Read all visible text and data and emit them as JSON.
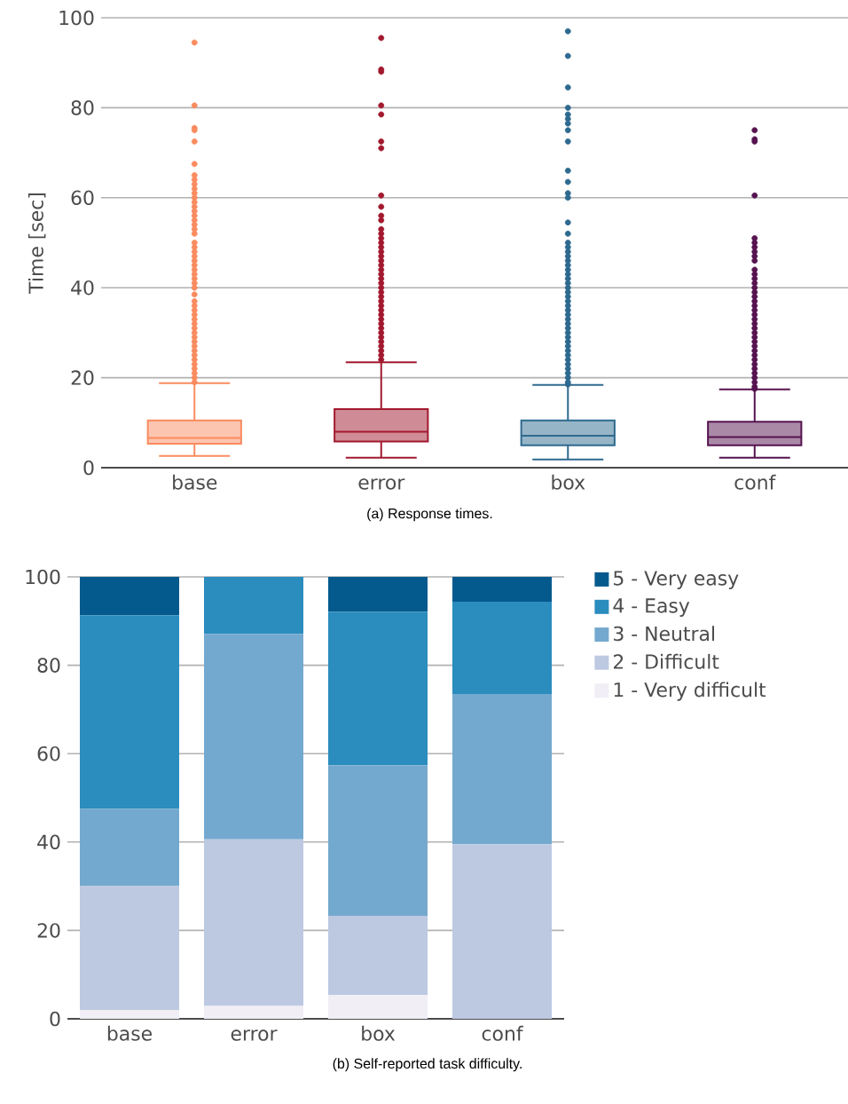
{
  "chart_data": [
    {
      "type": "box",
      "title": "(a) Response times.",
      "ylabel": "Time [sec]",
      "categories": [
        "base",
        "error",
        "box",
        "conf"
      ],
      "colors": [
        "#f98b5f",
        "#a2192e",
        "#2e6a8f",
        "#56134f"
      ],
      "boxes": [
        {
          "low": 2.6,
          "q1": 5.3,
          "median": 6.6,
          "q3": 10.5,
          "high": 18.8,
          "outliers": [
            19,
            20,
            21,
            22,
            23,
            24,
            25,
            26,
            27,
            28,
            29,
            30,
            31,
            32,
            33,
            34,
            35,
            36,
            37,
            38.5,
            40,
            41,
            42,
            43,
            44,
            45,
            46,
            47,
            48,
            49,
            50,
            52,
            53,
            54,
            55,
            56,
            57,
            58,
            59,
            60,
            61,
            62,
            63,
            64,
            65,
            67.5,
            72.5,
            75,
            75.5,
            80.5,
            94.5
          ]
        },
        {
          "low": 2.2,
          "q1": 5.8,
          "median": 8.0,
          "q3": 13.0,
          "high": 23.4,
          "outliers": [
            24,
            25,
            26,
            27,
            28,
            29,
            30,
            31,
            32,
            33,
            34,
            35,
            36,
            37,
            38,
            39,
            40,
            41,
            42,
            43,
            44,
            45,
            46,
            47,
            48,
            49,
            50,
            51,
            52,
            53,
            55,
            56,
            58,
            60.5,
            71,
            72.5,
            78.5,
            80.5,
            88,
            88.5,
            95.5
          ]
        },
        {
          "low": 1.8,
          "q1": 5.0,
          "median": 7.1,
          "q3": 10.5,
          "high": 18.4,
          "outliers": [
            18.5,
            19,
            20,
            21,
            22,
            23,
            24,
            25,
            26,
            27,
            28,
            29,
            30,
            31,
            32,
            33,
            34,
            35,
            36,
            37,
            38,
            39,
            40,
            41,
            42,
            43,
            44,
            45,
            46,
            47,
            48,
            49,
            50,
            52,
            54.5,
            60,
            61,
            63.5,
            66,
            72.5,
            75,
            76.5,
            77.5,
            78.5,
            80,
            84.5,
            91.5,
            97
          ]
        },
        {
          "low": 2.2,
          "q1": 5.0,
          "median": 6.8,
          "q3": 10.2,
          "high": 17.4,
          "outliers": [
            17.5,
            18,
            19,
            20,
            21,
            22,
            23,
            24,
            25,
            26,
            27,
            28,
            29,
            30,
            31,
            32,
            33,
            34,
            35,
            36,
            37,
            38,
            39,
            40,
            41,
            42,
            43,
            44,
            46,
            47,
            48,
            49,
            50,
            51,
            60.5,
            72.5,
            73,
            75
          ]
        }
      ],
      "ylim": [
        0,
        100
      ],
      "yticks": [
        0,
        20,
        40,
        60,
        80,
        100
      ],
      "grid": "y"
    },
    {
      "type": "bar",
      "title": "(b) Self-reported task difficulty.",
      "categories": [
        "base",
        "error",
        "box",
        "conf"
      ],
      "stacked": true,
      "series": [
        {
          "name": "1 - Very difficult",
          "color": "#f1eef6",
          "values": [
            2.0,
            2.9,
            5.4,
            0
          ]
        },
        {
          "name": "2 - Difficult",
          "color": "#bdc9e1",
          "values": [
            28.1,
            37.7,
            17.9,
            39.5
          ]
        },
        {
          "name": "3 - Neutral",
          "color": "#74a9cf",
          "values": [
            17.4,
            46.5,
            34.1,
            34.0
          ]
        },
        {
          "name": "4 - Easy",
          "color": "#2b8cbe",
          "values": [
            43.8,
            12.9,
            34.7,
            20.9
          ]
        },
        {
          "name": "5 - Very easy",
          "color": "#045a8d",
          "values": [
            8.7,
            0,
            7.9,
            5.6
          ]
        }
      ],
      "ylim": [
        0,
        100
      ],
      "yticks": [
        0,
        20,
        40,
        60,
        80,
        100
      ],
      "grid": "y",
      "legend": "right"
    }
  ]
}
